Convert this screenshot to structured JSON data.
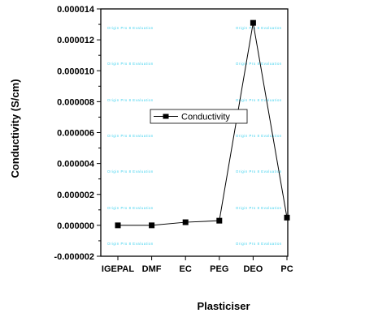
{
  "chart_data": {
    "type": "line",
    "title": "",
    "xlabel": "Plasticiser",
    "ylabel": "Conductivity (S/cm)",
    "categories": [
      "IGEPAL",
      "DMF",
      "EC",
      "PEG",
      "DEO",
      "PC"
    ],
    "series": [
      {
        "name": "Conductivity",
        "values": [
          0.0,
          0.0,
          2e-07,
          3e-07,
          1.31e-05,
          5e-07
        ],
        "color": "#000000",
        "marker": "square"
      }
    ],
    "ylim": [
      -2e-06,
      1.4e-05
    ],
    "yticks": [
      -2e-06,
      0.0,
      2e-06,
      4e-06,
      6e-06,
      8e-06,
      1e-05,
      1.2e-05,
      1.4e-05
    ],
    "ytick_labels": [
      "-0.000002",
      "0.000000",
      "0.000002",
      "0.000004",
      "0.000006",
      "0.000008",
      "0.000010",
      "0.000012",
      "0.000014"
    ],
    "grid": false,
    "legend_position": "left-middle",
    "watermark_text": "Origin Pro 8 Evaluation",
    "watermark_color": "#3ad0ee"
  }
}
